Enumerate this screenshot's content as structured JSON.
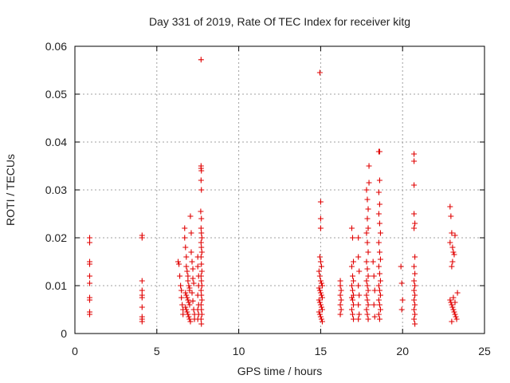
{
  "chart_data": {
    "type": "scatter",
    "title": "Day 331 of 2019, Rate Of TEC Index for receiver kitg",
    "xlabel": "GPS time / hours",
    "ylabel": "ROTI / TECUs",
    "xlim": [
      0,
      25
    ],
    "ylim": [
      0,
      0.06
    ],
    "x_ticks": [
      0,
      5,
      10,
      15,
      20,
      25
    ],
    "x_tick_labels": [
      "0",
      "5",
      "10",
      "15",
      "20",
      "25"
    ],
    "y_ticks": [
      0,
      0.01,
      0.02,
      0.03,
      0.04,
      0.05,
      0.06
    ],
    "y_tick_labels": [
      "0",
      "0.01",
      "0.02",
      "0.03",
      "0.04",
      "0.05",
      "0.06"
    ],
    "grid": true,
    "marker": "+",
    "color": "#e00000",
    "series": [
      {
        "name": "ROTI",
        "points": [
          [
            0.9,
            0.02
          ],
          [
            0.9,
            0.019
          ],
          [
            0.9,
            0.015
          ],
          [
            0.9,
            0.0145
          ],
          [
            0.9,
            0.012
          ],
          [
            0.9,
            0.0105
          ],
          [
            0.9,
            0.0075
          ],
          [
            0.9,
            0.007
          ],
          [
            0.9,
            0.0045
          ],
          [
            0.9,
            0.004
          ],
          [
            4.1,
            0.0205
          ],
          [
            4.1,
            0.02
          ],
          [
            4.1,
            0.011
          ],
          [
            4.1,
            0.009
          ],
          [
            4.1,
            0.008
          ],
          [
            4.1,
            0.0075
          ],
          [
            4.1,
            0.0055
          ],
          [
            4.1,
            0.0035
          ],
          [
            4.1,
            0.003
          ],
          [
            4.1,
            0.0025
          ],
          [
            6.3,
            0.015
          ],
          [
            6.35,
            0.0145
          ],
          [
            6.4,
            0.012
          ],
          [
            6.45,
            0.01
          ],
          [
            6.5,
            0.009
          ],
          [
            6.5,
            0.0075
          ],
          [
            6.55,
            0.006
          ],
          [
            6.6,
            0.005
          ],
          [
            6.6,
            0.004
          ],
          [
            6.7,
            0.022
          ],
          [
            6.7,
            0.02
          ],
          [
            6.75,
            0.018
          ],
          [
            6.8,
            0.016
          ],
          [
            6.8,
            0.014
          ],
          [
            6.85,
            0.013
          ],
          [
            6.9,
            0.012
          ],
          [
            6.9,
            0.011
          ],
          [
            6.95,
            0.01
          ],
          [
            7.0,
            0.0095
          ],
          [
            7.0,
            0.009
          ],
          [
            6.75,
            0.0085
          ],
          [
            6.8,
            0.008
          ],
          [
            6.85,
            0.0075
          ],
          [
            6.9,
            0.007
          ],
          [
            6.95,
            0.0065
          ],
          [
            7.0,
            0.006
          ],
          [
            6.75,
            0.0055
          ],
          [
            6.8,
            0.005
          ],
          [
            6.85,
            0.0045
          ],
          [
            6.9,
            0.004
          ],
          [
            6.95,
            0.0035
          ],
          [
            7.0,
            0.003
          ],
          [
            7.05,
            0.0025
          ],
          [
            7.05,
            0.0245
          ],
          [
            7.1,
            0.021
          ],
          [
            7.1,
            0.017
          ],
          [
            7.15,
            0.015
          ],
          [
            7.2,
            0.0135
          ],
          [
            7.2,
            0.0115
          ],
          [
            7.25,
            0.0105
          ],
          [
            7.15,
            0.0085
          ],
          [
            7.2,
            0.0068
          ],
          [
            7.25,
            0.005
          ],
          [
            7.3,
            0.004
          ],
          [
            7.3,
            0.003
          ],
          [
            7.5,
            0.016
          ],
          [
            7.5,
            0.014
          ],
          [
            7.55,
            0.012
          ],
          [
            7.55,
            0.01
          ],
          [
            7.5,
            0.008
          ],
          [
            7.55,
            0.006
          ],
          [
            7.5,
            0.005
          ],
          [
            7.55,
            0.004
          ],
          [
            7.5,
            0.003
          ],
          [
            7.7,
            0.0572
          ],
          [
            7.7,
            0.035
          ],
          [
            7.7,
            0.0345
          ],
          [
            7.72,
            0.034
          ],
          [
            7.7,
            0.032
          ],
          [
            7.72,
            0.03
          ],
          [
            7.68,
            0.0255
          ],
          [
            7.72,
            0.024
          ],
          [
            7.7,
            0.022
          ],
          [
            7.72,
            0.021
          ],
          [
            7.75,
            0.02
          ],
          [
            7.7,
            0.019
          ],
          [
            7.72,
            0.018
          ],
          [
            7.75,
            0.017
          ],
          [
            7.7,
            0.016
          ],
          [
            7.72,
            0.0145
          ],
          [
            7.75,
            0.013
          ],
          [
            7.7,
            0.012
          ],
          [
            7.72,
            0.011
          ],
          [
            7.75,
            0.01
          ],
          [
            7.7,
            0.009
          ],
          [
            7.72,
            0.008
          ],
          [
            7.75,
            0.007
          ],
          [
            7.7,
            0.006
          ],
          [
            7.72,
            0.005
          ],
          [
            7.75,
            0.004
          ],
          [
            7.7,
            0.003
          ],
          [
            7.72,
            0.002
          ],
          [
            14.95,
            0.0545
          ],
          [
            15.0,
            0.0275
          ],
          [
            15.0,
            0.024
          ],
          [
            15.0,
            0.022
          ],
          [
            14.95,
            0.016
          ],
          [
            15.0,
            0.015
          ],
          [
            15.05,
            0.014
          ],
          [
            14.9,
            0.013
          ],
          [
            14.95,
            0.012
          ],
          [
            15.0,
            0.011
          ],
          [
            15.05,
            0.0105
          ],
          [
            15.1,
            0.01
          ],
          [
            14.9,
            0.0095
          ],
          [
            14.95,
            0.009
          ],
          [
            15.0,
            0.0085
          ],
          [
            15.05,
            0.008
          ],
          [
            15.1,
            0.0075
          ],
          [
            14.9,
            0.007
          ],
          [
            14.95,
            0.0065
          ],
          [
            15.0,
            0.006
          ],
          [
            15.05,
            0.0055
          ],
          [
            15.1,
            0.005
          ],
          [
            14.9,
            0.0045
          ],
          [
            14.95,
            0.004
          ],
          [
            15.0,
            0.0035
          ],
          [
            15.05,
            0.003
          ],
          [
            15.1,
            0.0025
          ],
          [
            16.2,
            0.011
          ],
          [
            16.2,
            0.01
          ],
          [
            16.25,
            0.009
          ],
          [
            16.2,
            0.008
          ],
          [
            16.25,
            0.007
          ],
          [
            16.2,
            0.006
          ],
          [
            16.25,
            0.005
          ],
          [
            16.2,
            0.004
          ],
          [
            16.9,
            0.022
          ],
          [
            16.95,
            0.02
          ],
          [
            17.0,
            0.015
          ],
          [
            16.9,
            0.014
          ],
          [
            16.95,
            0.012
          ],
          [
            17.0,
            0.011
          ],
          [
            16.9,
            0.01
          ],
          [
            16.95,
            0.009
          ],
          [
            17.0,
            0.008
          ],
          [
            16.9,
            0.0075
          ],
          [
            16.95,
            0.007
          ],
          [
            17.0,
            0.006
          ],
          [
            16.9,
            0.005
          ],
          [
            16.95,
            0.004
          ],
          [
            17.0,
            0.003
          ],
          [
            17.3,
            0.02
          ],
          [
            17.3,
            0.016
          ],
          [
            17.35,
            0.013
          ],
          [
            17.3,
            0.01
          ],
          [
            17.35,
            0.008
          ],
          [
            17.3,
            0.006
          ],
          [
            17.35,
            0.004
          ],
          [
            17.3,
            0.003
          ],
          [
            17.8,
            0.03
          ],
          [
            17.85,
            0.028
          ],
          [
            17.9,
            0.026
          ],
          [
            17.85,
            0.024
          ],
          [
            17.9,
            0.022
          ],
          [
            17.8,
            0.021
          ],
          [
            17.95,
            0.0315
          ],
          [
            17.95,
            0.035
          ],
          [
            17.85,
            0.019
          ],
          [
            17.9,
            0.017
          ],
          [
            17.8,
            0.015
          ],
          [
            17.85,
            0.0135
          ],
          [
            17.9,
            0.012
          ],
          [
            17.8,
            0.011
          ],
          [
            17.85,
            0.01
          ],
          [
            17.9,
            0.009
          ],
          [
            17.8,
            0.008
          ],
          [
            17.85,
            0.007
          ],
          [
            17.9,
            0.006
          ],
          [
            17.8,
            0.005
          ],
          [
            17.85,
            0.004
          ],
          [
            17.9,
            0.003
          ],
          [
            18.55,
            0.038
          ],
          [
            18.6,
            0.038
          ],
          [
            18.6,
            0.032
          ],
          [
            18.55,
            0.0295
          ],
          [
            18.6,
            0.027
          ],
          [
            18.55,
            0.025
          ],
          [
            18.6,
            0.023
          ],
          [
            18.65,
            0.021
          ],
          [
            18.55,
            0.019
          ],
          [
            18.6,
            0.017
          ],
          [
            18.65,
            0.0155
          ],
          [
            18.55,
            0.014
          ],
          [
            18.6,
            0.0125
          ],
          [
            18.65,
            0.011
          ],
          [
            18.55,
            0.01
          ],
          [
            18.6,
            0.009
          ],
          [
            18.65,
            0.008
          ],
          [
            18.55,
            0.007
          ],
          [
            18.6,
            0.006
          ],
          [
            18.65,
            0.005
          ],
          [
            18.55,
            0.004
          ],
          [
            18.6,
            0.003
          ],
          [
            18.2,
            0.015
          ],
          [
            18.25,
            0.012
          ],
          [
            18.3,
            0.009
          ],
          [
            18.25,
            0.006
          ],
          [
            18.3,
            0.0035
          ],
          [
            19.9,
            0.014
          ],
          [
            19.95,
            0.0105
          ],
          [
            20.0,
            0.007
          ],
          [
            19.95,
            0.005
          ],
          [
            20.7,
            0.0375
          ],
          [
            20.7,
            0.036
          ],
          [
            20.7,
            0.031
          ],
          [
            20.7,
            0.025
          ],
          [
            20.75,
            0.023
          ],
          [
            20.7,
            0.022
          ],
          [
            20.75,
            0.016
          ],
          [
            20.7,
            0.014
          ],
          [
            20.75,
            0.0125
          ],
          [
            20.7,
            0.011
          ],
          [
            20.75,
            0.01
          ],
          [
            20.7,
            0.009
          ],
          [
            20.75,
            0.008
          ],
          [
            20.7,
            0.007
          ],
          [
            20.75,
            0.006
          ],
          [
            20.7,
            0.005
          ],
          [
            20.75,
            0.004
          ],
          [
            20.7,
            0.003
          ],
          [
            20.75,
            0.002
          ],
          [
            22.9,
            0.0265
          ],
          [
            22.95,
            0.0245
          ],
          [
            23.0,
            0.021
          ],
          [
            22.9,
            0.019
          ],
          [
            23.05,
            0.018
          ],
          [
            23.1,
            0.017
          ],
          [
            23.15,
            0.0165
          ],
          [
            23.2,
            0.0205
          ],
          [
            23.05,
            0.015
          ],
          [
            23.0,
            0.014
          ],
          [
            22.9,
            0.007
          ],
          [
            22.95,
            0.0065
          ],
          [
            23.0,
            0.006
          ],
          [
            23.05,
            0.0055
          ],
          [
            23.1,
            0.005
          ],
          [
            23.15,
            0.0045
          ],
          [
            23.2,
            0.004
          ],
          [
            23.25,
            0.0035
          ],
          [
            23.3,
            0.003
          ],
          [
            23.35,
            0.0085
          ],
          [
            23.0,
            0.0025
          ],
          [
            23.1,
            0.0075
          ],
          [
            23.2,
            0.0065
          ]
        ]
      }
    ]
  }
}
